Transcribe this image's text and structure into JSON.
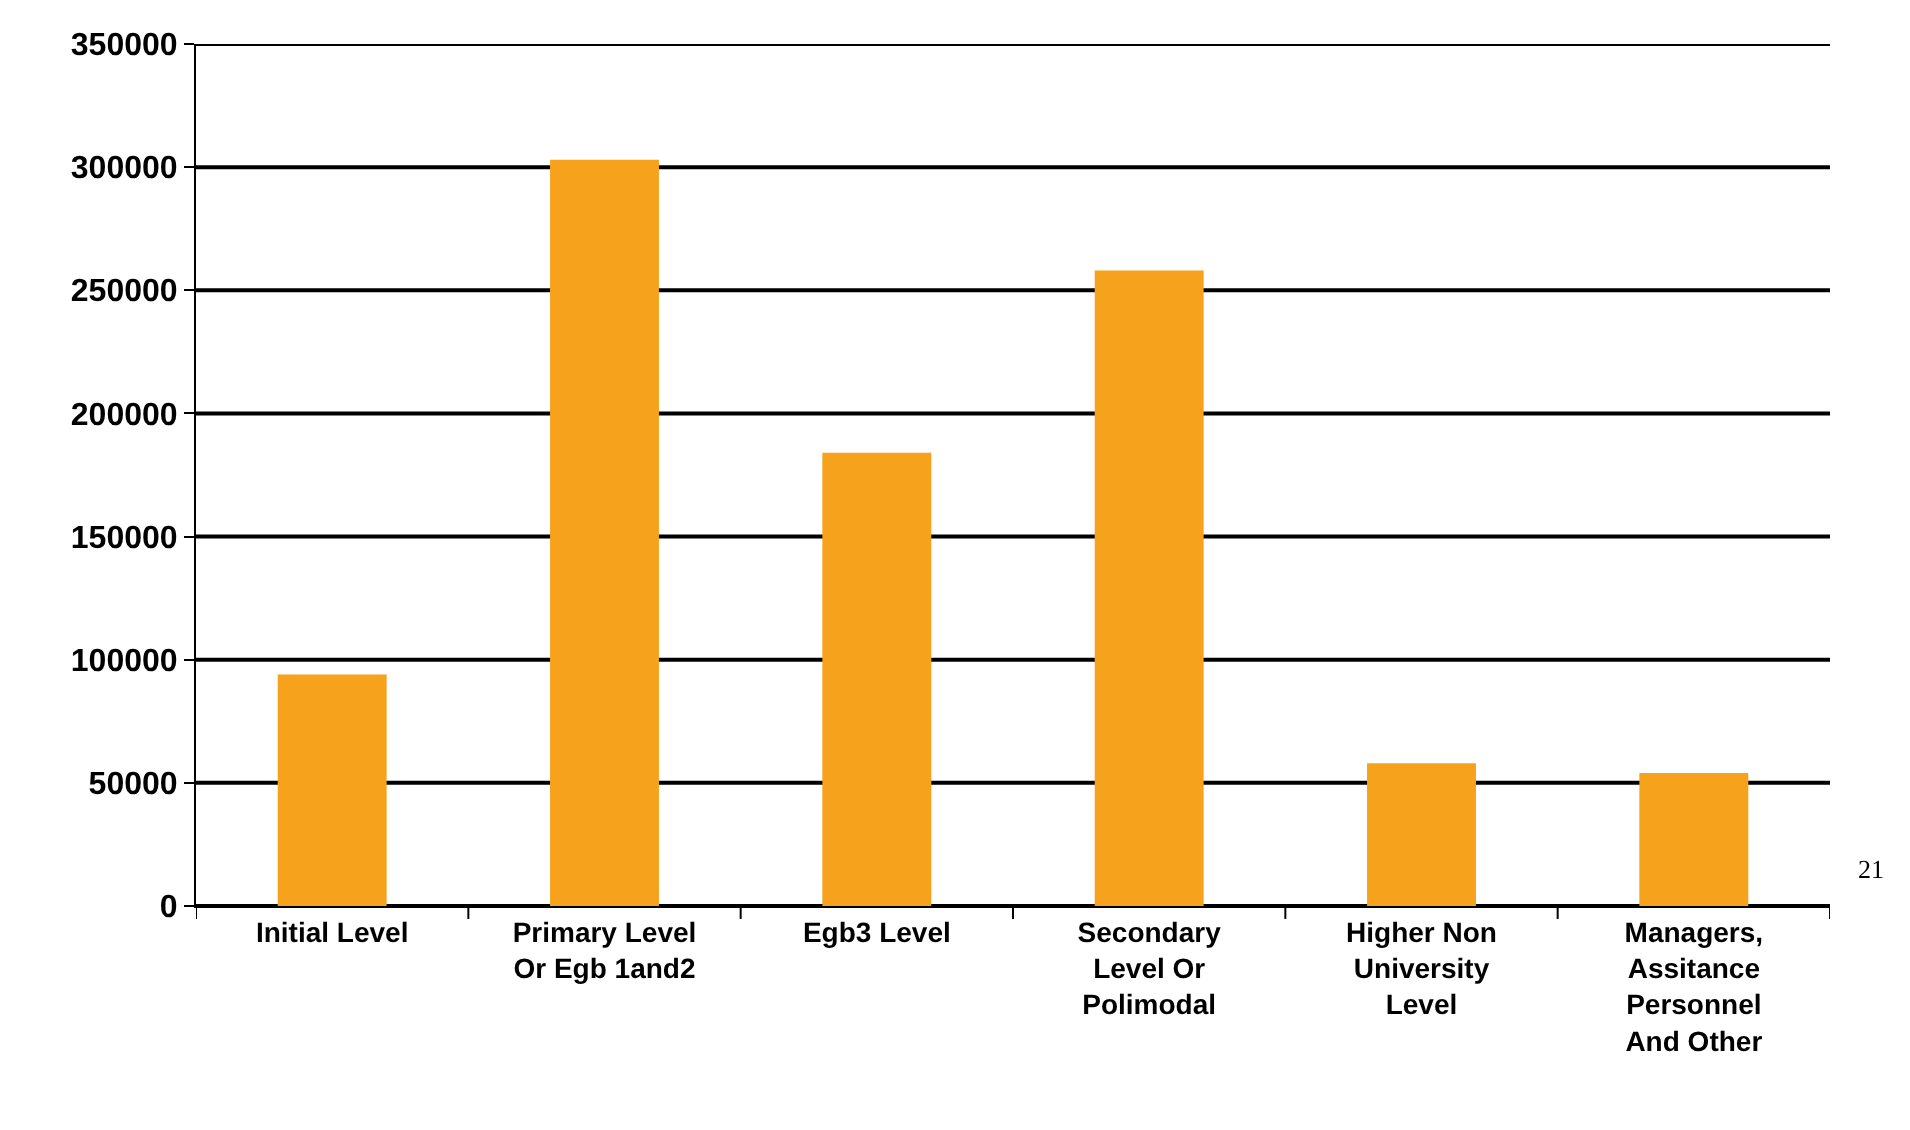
{
  "chart_data": {
    "type": "bar",
    "categories": [
      "Initial Level",
      "Primary Level Or Egb 1and2",
      "Egb3 Level",
      "Secondary Level Or Polimodal",
      "Higher Non University Level",
      "Managers, Assitance Personnel And Other"
    ],
    "values": [
      94000,
      303000,
      184000,
      258000,
      58000,
      54000
    ],
    "color": "#f6a21d",
    "ylim": [
      0,
      350000
    ],
    "yticks": [
      0,
      50000,
      100000,
      150000,
      200000,
      250000,
      300000,
      350000
    ],
    "grid": "y",
    "annotations": [
      "21"
    ]
  }
}
